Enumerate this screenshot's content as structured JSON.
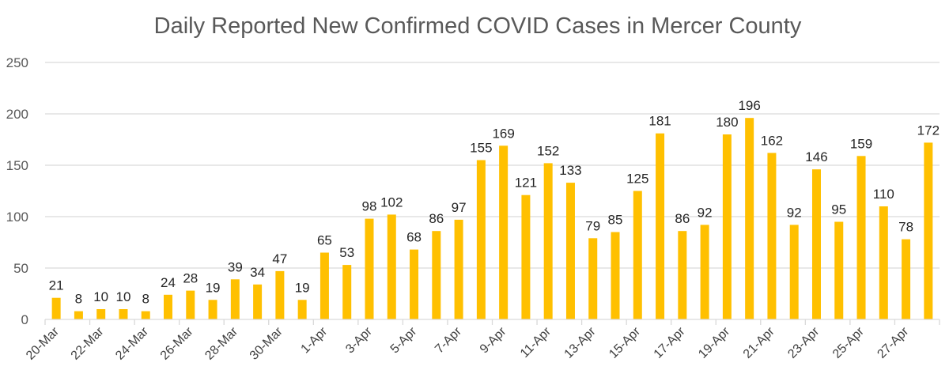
{
  "chart_data": {
    "type": "bar",
    "title": "Daily Reported New Confirmed COVID Cases in Mercer County",
    "xlabel": "",
    "ylabel": "",
    "ylim": [
      0,
      250
    ],
    "yticks": [
      0,
      50,
      100,
      150,
      200,
      250
    ],
    "grid": true,
    "legend": "none",
    "bar_color": "#FFC000",
    "categories": [
      "20-Mar",
      "21-Mar",
      "22-Mar",
      "23-Mar",
      "24-Mar",
      "25-Mar",
      "26-Mar",
      "27-Mar",
      "28-Mar",
      "29-Mar",
      "30-Mar",
      "31-Mar",
      "1-Apr",
      "2-Apr",
      "3-Apr",
      "4-Apr",
      "5-Apr",
      "6-Apr",
      "7-Apr",
      "8-Apr",
      "9-Apr",
      "10-Apr",
      "11-Apr",
      "12-Apr",
      "13-Apr",
      "14-Apr",
      "15-Apr",
      "16-Apr",
      "17-Apr",
      "18-Apr",
      "19-Apr",
      "20-Apr",
      "21-Apr",
      "22-Apr",
      "23-Apr",
      "24-Apr",
      "25-Apr",
      "26-Apr",
      "27-Apr",
      "28-Apr"
    ],
    "visible_tick_labels": [
      "20-Mar",
      "22-Mar",
      "24-Mar",
      "26-Mar",
      "28-Mar",
      "30-Mar",
      "1-Apr",
      "3-Apr",
      "5-Apr",
      "7-Apr",
      "9-Apr",
      "11-Apr",
      "13-Apr",
      "15-Apr",
      "17-Apr",
      "19-Apr",
      "21-Apr",
      "23-Apr",
      "25-Apr",
      "27-Apr"
    ],
    "values": [
      21,
      8,
      10,
      10,
      8,
      24,
      28,
      19,
      39,
      34,
      47,
      19,
      65,
      53,
      98,
      102,
      68,
      86,
      97,
      155,
      169,
      121,
      152,
      133,
      79,
      85,
      125,
      181,
      86,
      92,
      180,
      196,
      162,
      92,
      146,
      95,
      159,
      110,
      78,
      172
    ]
  }
}
